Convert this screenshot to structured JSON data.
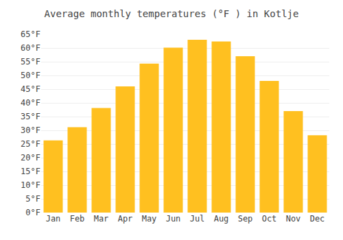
{
  "chart_data": {
    "type": "bar",
    "title": "Average monthly temperatures (°F ) in Kotlje",
    "categories": [
      "Jan",
      "Feb",
      "Mar",
      "Apr",
      "May",
      "Jun",
      "Jul",
      "Aug",
      "Sep",
      "Oct",
      "Nov",
      "Dec"
    ],
    "values": [
      26.3,
      31.1,
      38.1,
      46.0,
      54.3,
      60.1,
      63.0,
      62.4,
      57.0,
      48.0,
      37.0,
      28.2
    ],
    "color": "#FFC020",
    "ylim": [
      0,
      65
    ],
    "yticks": [
      {
        "value": 0,
        "label": "0°F"
      },
      {
        "value": 5,
        "label": "5°F"
      },
      {
        "value": 10,
        "label": "10°F"
      },
      {
        "value": 15,
        "label": "15°F"
      },
      {
        "value": 20,
        "label": "20°F"
      },
      {
        "value": 25,
        "label": "25°F"
      },
      {
        "value": 30,
        "label": "30°F"
      },
      {
        "value": 35,
        "label": "35°F"
      },
      {
        "value": 40,
        "label": "40°F"
      },
      {
        "value": 45,
        "label": "45°F"
      },
      {
        "value": 50,
        "label": "50°F"
      },
      {
        "value": 55,
        "label": "55°F"
      },
      {
        "value": 60,
        "label": "60°F"
      },
      {
        "value": 65,
        "label": "65°F"
      }
    ],
    "grid": true
  }
}
